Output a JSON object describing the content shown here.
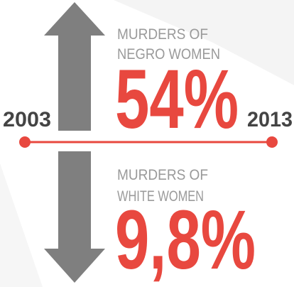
{
  "timeline": {
    "start": "2003",
    "end": "2013"
  },
  "items": [
    {
      "label": [
        "MURDERS OF",
        "NEGRO WOMEN"
      ],
      "value": "54%"
    },
    {
      "label": [
        "MURDERS OF",
        "WHITE WOMEN"
      ],
      "value": "9,8%"
    }
  ]
}
